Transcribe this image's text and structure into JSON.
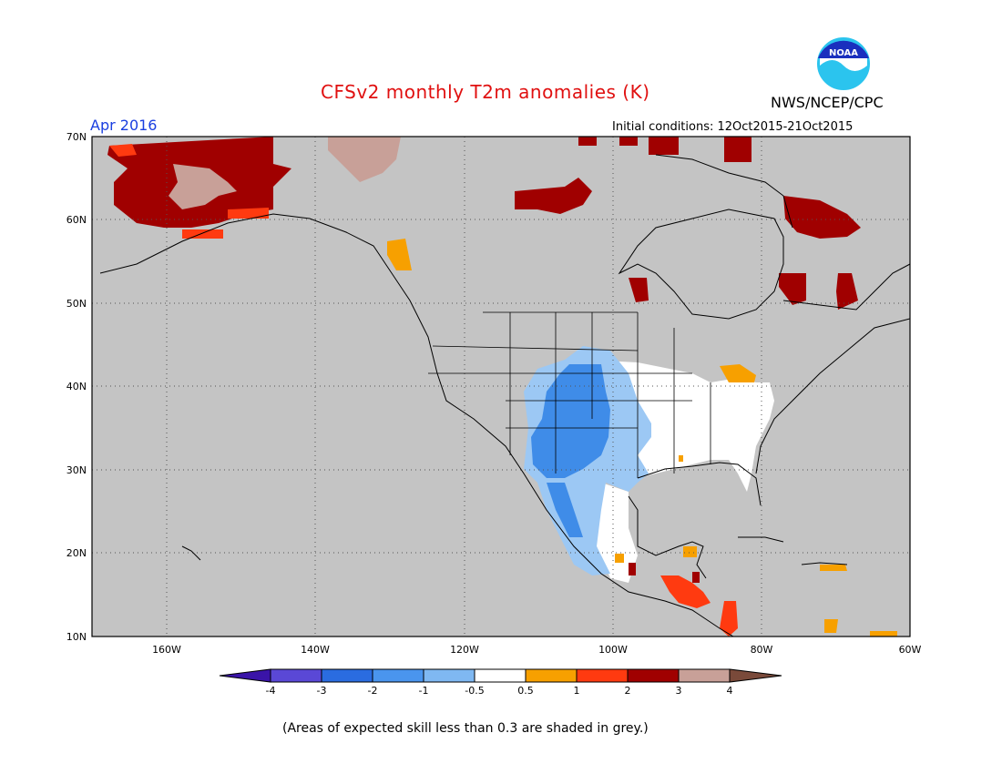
{
  "title": "CFSv2 monthly T2m anomalies (K)",
  "org": "NWS/NCEP/CPC",
  "noaa_logo_text": "NOAA",
  "forecast_month": "Apr 2016",
  "initial_conditions": "Initial conditions: 12Oct2015-21Oct2015",
  "footnote": "(Areas of expected skill less than 0.3 are shaded in grey.)",
  "map": {
    "lat_labels": [
      "70N",
      "60N",
      "50N",
      "40N",
      "30N",
      "20N",
      "10N"
    ],
    "lon_labels": [
      "160W",
      "140W",
      "120W",
      "100W",
      "80W",
      "60W"
    ]
  },
  "legend": {
    "tick_labels": [
      "-4",
      "-3",
      "-2",
      "-1",
      "-0.5",
      "0.5",
      "1",
      "2",
      "3",
      "4"
    ],
    "colors": [
      "#3a14a8",
      "#5a48d6",
      "#2a6ce0",
      "#4a95ee",
      "#7fb8f2",
      "#ffffff",
      "#f7a000",
      "#ff3a10",
      "#a00000",
      "#c8a098",
      "#7a4a3a"
    ]
  },
  "colors": {
    "grey_mask": "#c4c4c4",
    "title": "#e01010",
    "month": "#1a3fe0"
  }
}
